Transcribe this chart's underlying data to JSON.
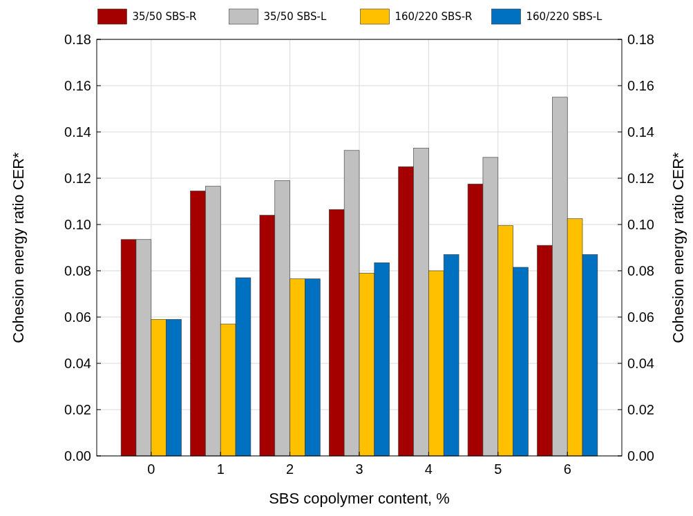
{
  "chart_data": {
    "type": "bar",
    "xlabel": "SBS copolymer content, %",
    "ylabel": "Cohesion energy ratio CER*",
    "y2label": "Cohesion energy ratio CER*",
    "categories": [
      "0",
      "1",
      "2",
      "3",
      "4",
      "5",
      "6"
    ],
    "series": [
      {
        "name": "35/50 SBS-R",
        "color": "#a50000",
        "values": [
          0.0935,
          0.1145,
          0.104,
          0.1065,
          0.125,
          0.1175,
          0.091
        ]
      },
      {
        "name": "35/50 SBS-L",
        "color": "#c0c0c0",
        "values": [
          0.0935,
          0.1165,
          0.119,
          0.132,
          0.133,
          0.129,
          0.155
        ]
      },
      {
        "name": "160/220 SBS-R",
        "color": "#ffc000",
        "values": [
          0.059,
          0.057,
          0.0765,
          0.079,
          0.08,
          0.0995,
          0.1025
        ]
      },
      {
        "name": "160/220 SBS-L",
        "color": "#0070c0",
        "values": [
          0.059,
          0.077,
          0.0765,
          0.0835,
          0.087,
          0.0815,
          0.087
        ]
      }
    ],
    "ylim": [
      0,
      0.18
    ],
    "yticks": [
      {
        "value": 0,
        "label": "0.00"
      },
      {
        "value": 0.02,
        "label": "0.02"
      },
      {
        "value": 0.04,
        "label": "0.04"
      },
      {
        "value": 0.06,
        "label": "0.06"
      },
      {
        "value": 0.08,
        "label": "0.08"
      },
      {
        "value": 0.1,
        "label": "0.10"
      },
      {
        "value": 0.12,
        "label": "0.12"
      },
      {
        "value": 0.14,
        "label": "0.14"
      },
      {
        "value": 0.16,
        "label": "0.16"
      },
      {
        "value": 0.18,
        "label": "0.18"
      }
    ],
    "y2lim": [
      0,
      0.18
    ],
    "y2ticks": [
      {
        "value": 0,
        "label": "0.00"
      },
      {
        "value": 0.02,
        "label": "0.02"
      },
      {
        "value": 0.04,
        "label": "0.04"
      },
      {
        "value": 0.06,
        "label": "0.06"
      },
      {
        "value": 0.08,
        "label": "0.08"
      },
      {
        "value": 0.1,
        "label": "0.10"
      },
      {
        "value": 0.12,
        "label": "0.12"
      },
      {
        "value": 0.14,
        "label": "0.14"
      },
      {
        "value": 0.16,
        "label": "0.16"
      },
      {
        "value": 0.18,
        "label": "0.18"
      }
    ],
    "grid": true,
    "legend": "top"
  }
}
